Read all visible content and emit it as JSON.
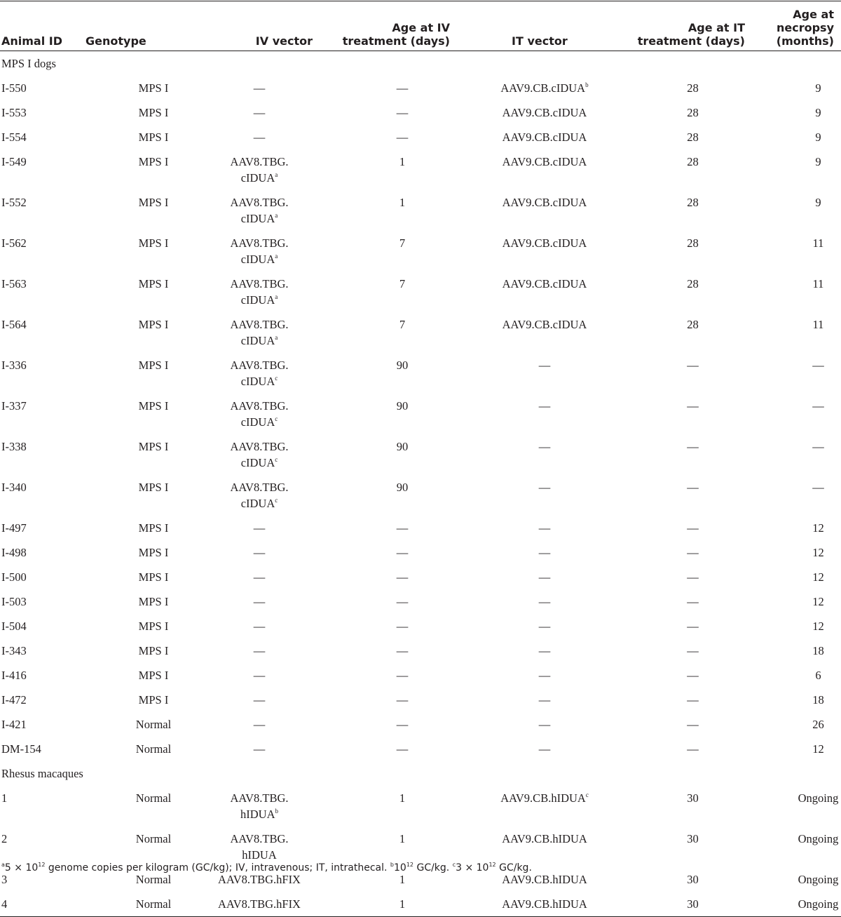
{
  "headers": [
    "Animal ID",
    "Genotype",
    "IV vector",
    "Age at IV treatment (days)",
    "IT vector",
    "Age at IT treatment (days)",
    "Age at necropsy (months)"
  ],
  "sections": [
    {
      "title": "MPS I dogs",
      "rows": [
        [
          "I-550",
          "MPS I",
          "—",
          "—",
          "AAV9.CB.cIDUA|b",
          "28",
          "9"
        ],
        [
          "I-553",
          "MPS I",
          "—",
          "—",
          "AAV9.CB.cIDUA",
          "28",
          "9"
        ],
        [
          "I-554",
          "MPS I",
          "—",
          "—",
          "AAV9.CB.cIDUA",
          "28",
          "9"
        ],
        [
          "I-549",
          "MPS I",
          "AAV8.TBG.\ncIDUA|a",
          "1",
          "AAV9.CB.cIDUA",
          "28",
          "9"
        ],
        [
          "I-552",
          "MPS I",
          "AAV8.TBG.\ncIDUA|a",
          "1",
          "AAV9.CB.cIDUA",
          "28",
          "9"
        ],
        [
          "I-562",
          "MPS I",
          "AAV8.TBG.\ncIDUA|a",
          "7",
          "AAV9.CB.cIDUA",
          "28",
          "11"
        ],
        [
          "I-563",
          "MPS I",
          "AAV8.TBG.\ncIDUA|a",
          "7",
          "AAV9.CB.cIDUA",
          "28",
          "11"
        ],
        [
          "I-564",
          "MPS I",
          "AAV8.TBG.\ncIDUA|a",
          "7",
          "AAV9.CB.cIDUA",
          "28",
          "11"
        ],
        [
          "I-336",
          "MPS I",
          "AAV8.TBG.\ncIDUA|c",
          "90",
          "—",
          "—",
          "—"
        ],
        [
          "I-337",
          "MPS I",
          "AAV8.TBG.\ncIDUA|c",
          "90",
          "—",
          "—",
          "—"
        ],
        [
          "I-338",
          "MPS I",
          "AAV8.TBG.\ncIDUA|c",
          "90",
          "—",
          "—",
          "—"
        ],
        [
          "I-340",
          "MPS I",
          "AAV8.TBG.\ncIDUA|c",
          "90",
          "—",
          "—",
          "—"
        ],
        [
          "I-497",
          "MPS I",
          "—",
          "—",
          "—",
          "—",
          "12"
        ],
        [
          "I-498",
          "MPS I",
          "—",
          "—",
          "—",
          "—",
          "12"
        ],
        [
          "I-500",
          "MPS I",
          "—",
          "—",
          "—",
          "—",
          "12"
        ],
        [
          "I-503",
          "MPS I",
          "—",
          "—",
          "—",
          "—",
          "12"
        ],
        [
          "I-504",
          "MPS I",
          "—",
          "—",
          "—",
          "—",
          "12"
        ],
        [
          "I-343",
          "MPS I",
          "—",
          "—",
          "—",
          "—",
          "18"
        ],
        [
          "I-416",
          "MPS I",
          "—",
          "—",
          "—",
          "—",
          "6"
        ],
        [
          "I-472",
          "MPS I",
          "—",
          "—",
          "—",
          "—",
          "18"
        ],
        [
          "I-421",
          "Normal",
          "—",
          "—",
          "—",
          "—",
          "26"
        ],
        [
          "DM-154",
          "Normal",
          "—",
          "—",
          "—",
          "—",
          "12"
        ]
      ]
    },
    {
      "title": "Rhesus macaques",
      "rows": [
        [
          "1",
          "Normal",
          "AAV8.TBG.\nhIDUA|b",
          "1",
          "AAV9.CB.hIDUA|c",
          "30",
          "Ongoing"
        ],
        [
          "2",
          "Normal",
          "AAV8.TBG.\nhIDUA",
          "1",
          "AAV9.CB.hIDUA",
          "30",
          "Ongoing"
        ],
        [
          "3",
          "Normal",
          "AAV8.TBG.hFIX",
          "1",
          "AAV9.CB.hIDUA",
          "30",
          "Ongoing"
        ],
        [
          "4",
          "Normal",
          "AAV8.TBG.hFIX",
          "1",
          "AAV9.CB.hIDUA",
          "30",
          "Ongoing"
        ]
      ]
    }
  ],
  "footnotes": [
    {
      "mark": "a",
      "text": "5 × 10",
      "exp": "12",
      "rest": " genome copies per kilogram (GC/kg); IV, intravenous; IT, intrathecal. "
    },
    {
      "mark": "b",
      "text": "10",
      "exp": "12",
      "rest": " GC/kg. "
    },
    {
      "mark": "c",
      "text": "3 × 10",
      "exp": "12",
      "rest": " GC/kg."
    }
  ]
}
